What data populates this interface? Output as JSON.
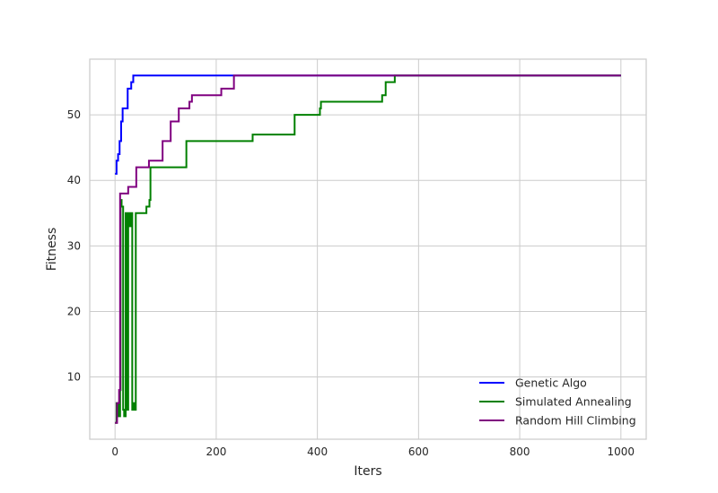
{
  "chart_data": {
    "type": "line",
    "title": "",
    "xlabel": "Iters",
    "ylabel": "Fitness",
    "xlim": [
      -50,
      1050
    ],
    "ylim": [
      0.5,
      58.5
    ],
    "xticks": [
      0,
      200,
      400,
      600,
      800,
      1000
    ],
    "yticks": [
      10,
      20,
      30,
      40,
      50
    ],
    "grid": true,
    "legend_position": "lower-right",
    "series": [
      {
        "name": "Genetic Algo",
        "color": "#0000ff",
        "points": [
          [
            0,
            41
          ],
          [
            3,
            41
          ],
          [
            3,
            43
          ],
          [
            6,
            43
          ],
          [
            6,
            44
          ],
          [
            9,
            44
          ],
          [
            9,
            46
          ],
          [
            12,
            46
          ],
          [
            12,
            49
          ],
          [
            15,
            49
          ],
          [
            15,
            51
          ],
          [
            25,
            51
          ],
          [
            25,
            54
          ],
          [
            32,
            54
          ],
          [
            32,
            55
          ],
          [
            36,
            55
          ],
          [
            36,
            56
          ],
          [
            1000,
            56
          ]
        ]
      },
      {
        "name": "Simulated Annealing",
        "color": "#008000",
        "points": [
          [
            0,
            3
          ],
          [
            3,
            3
          ],
          [
            3,
            6
          ],
          [
            7,
            6
          ],
          [
            7,
            4
          ],
          [
            10,
            4
          ],
          [
            10,
            8
          ],
          [
            11,
            8
          ],
          [
            11,
            37
          ],
          [
            13,
            37
          ],
          [
            13,
            36
          ],
          [
            16,
            36
          ],
          [
            16,
            5
          ],
          [
            18,
            5
          ],
          [
            18,
            4
          ],
          [
            21,
            4
          ],
          [
            21,
            35
          ],
          [
            24,
            35
          ],
          [
            24,
            5
          ],
          [
            26,
            5
          ],
          [
            26,
            35
          ],
          [
            29,
            35
          ],
          [
            29,
            33
          ],
          [
            31,
            33
          ],
          [
            31,
            35
          ],
          [
            34,
            35
          ],
          [
            34,
            5
          ],
          [
            37,
            5
          ],
          [
            37,
            6
          ],
          [
            39,
            6
          ],
          [
            39,
            5
          ],
          [
            41,
            5
          ],
          [
            41,
            35
          ],
          [
            62,
            35
          ],
          [
            62,
            36
          ],
          [
            68,
            36
          ],
          [
            68,
            37
          ],
          [
            70,
            37
          ],
          [
            70,
            42
          ],
          [
            141,
            42
          ],
          [
            141,
            46
          ],
          [
            272,
            46
          ],
          [
            272,
            47
          ],
          [
            355,
            47
          ],
          [
            355,
            50
          ],
          [
            405,
            50
          ],
          [
            405,
            51
          ],
          [
            407,
            51
          ],
          [
            407,
            52
          ],
          [
            528,
            52
          ],
          [
            528,
            53
          ],
          [
            535,
            53
          ],
          [
            535,
            55
          ],
          [
            553,
            55
          ],
          [
            553,
            56
          ],
          [
            1000,
            56
          ]
        ]
      },
      {
        "name": "Random Hill Climbing",
        "color": "#800080",
        "points": [
          [
            0,
            3
          ],
          [
            4,
            3
          ],
          [
            4,
            6
          ],
          [
            8,
            6
          ],
          [
            8,
            8
          ],
          [
            10,
            8
          ],
          [
            10,
            38
          ],
          [
            26,
            38
          ],
          [
            26,
            39
          ],
          [
            42,
            39
          ],
          [
            42,
            42
          ],
          [
            67,
            42
          ],
          [
            67,
            43
          ],
          [
            94,
            43
          ],
          [
            94,
            46
          ],
          [
            110,
            46
          ],
          [
            110,
            49
          ],
          [
            126,
            49
          ],
          [
            126,
            51
          ],
          [
            147,
            51
          ],
          [
            147,
            52
          ],
          [
            152,
            52
          ],
          [
            152,
            53
          ],
          [
            210,
            53
          ],
          [
            210,
            54
          ],
          [
            235,
            54
          ],
          [
            235,
            56
          ],
          [
            1000,
            56
          ]
        ]
      }
    ]
  }
}
